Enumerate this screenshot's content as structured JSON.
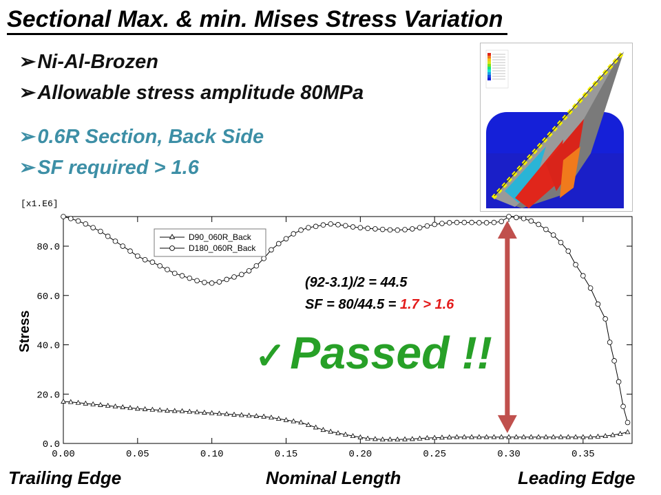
{
  "title": "Sectional Max. & min. Mises Stress Variation",
  "bullets": [
    {
      "arrow": "➢",
      "text": "Ni-Al-Brozen"
    },
    {
      "arrow": "➢",
      "text": "Allowable stress amplitude 80MPa"
    },
    {
      "arrow": "➢",
      "text": "0.6R Section, Back Side"
    },
    {
      "arrow": "➢",
      "text": "SF required > 1.6"
    }
  ],
  "annotation": {
    "line1": "(92-3.1)/2 = 44.5",
    "line2_prefix": "SF = 80/44.5 = ",
    "line2_result": "1.7 > 1.6"
  },
  "passed": {
    "check": "✓",
    "text": "Passed !!"
  },
  "footer": {
    "left": "Trailing Edge",
    "center": "Nominal Length",
    "right": "Leading Edge"
  },
  "colors": {
    "teal": "#3d8fa6",
    "green": "#27a027",
    "red_text": "#e31b1b",
    "arrow": "#c0504d"
  },
  "chart_data": {
    "type": "line",
    "scale_label": "[x1.E6]",
    "ylabel": "Stress",
    "xlabel": "",
    "xlim": [
      0.0,
      0.383
    ],
    "ylim": [
      0.0,
      92.0
    ],
    "xticks": [
      "0.00",
      "0.05",
      "0.10",
      "0.15",
      "0.20",
      "0.25",
      "0.30",
      "0.35"
    ],
    "yticks": [
      "0.0",
      "20.0",
      "40.0",
      "60.0",
      "80.0"
    ],
    "legend_position": "top-left",
    "arrow_range": {
      "x": 0.299,
      "y_low": 3.1,
      "y_high": 92.0
    },
    "series": [
      {
        "name": "D90_060R_Back",
        "marker": "triangle",
        "x": [
          0.0,
          0.005,
          0.01,
          0.015,
          0.02,
          0.025,
          0.03,
          0.035,
          0.04,
          0.045,
          0.05,
          0.055,
          0.06,
          0.065,
          0.07,
          0.075,
          0.08,
          0.085,
          0.09,
          0.095,
          0.1,
          0.105,
          0.11,
          0.115,
          0.12,
          0.125,
          0.13,
          0.135,
          0.14,
          0.145,
          0.15,
          0.155,
          0.16,
          0.165,
          0.17,
          0.175,
          0.18,
          0.185,
          0.19,
          0.195,
          0.2,
          0.205,
          0.21,
          0.215,
          0.22,
          0.225,
          0.23,
          0.235,
          0.24,
          0.245,
          0.25,
          0.255,
          0.26,
          0.265,
          0.27,
          0.275,
          0.28,
          0.285,
          0.29,
          0.295,
          0.3,
          0.305,
          0.31,
          0.315,
          0.32,
          0.325,
          0.33,
          0.335,
          0.34,
          0.345,
          0.35,
          0.355,
          0.36,
          0.365,
          0.37,
          0.375,
          0.38
        ],
        "values": [
          17.0,
          16.8,
          16.5,
          16.2,
          15.9,
          15.6,
          15.3,
          15.0,
          14.7,
          14.4,
          14.1,
          13.9,
          13.7,
          13.5,
          13.3,
          13.2,
          13.1,
          12.9,
          12.7,
          12.5,
          12.3,
          12.1,
          11.9,
          11.7,
          11.5,
          11.3,
          11.1,
          10.9,
          10.5,
          10.0,
          9.5,
          9.0,
          8.5,
          7.5,
          6.5,
          5.5,
          4.8,
          4.2,
          3.6,
          3.0,
          2.5,
          2.0,
          1.8,
          1.6,
          1.6,
          1.6,
          1.7,
          1.8,
          2.0,
          2.2,
          2.3,
          2.4,
          2.5,
          2.6,
          2.6,
          2.6,
          2.6,
          2.6,
          2.6,
          2.6,
          2.6,
          2.6,
          2.6,
          2.6,
          2.6,
          2.6,
          2.6,
          2.6,
          2.6,
          2.6,
          2.6,
          2.6,
          2.8,
          3.0,
          3.4,
          3.9,
          4.6
        ]
      },
      {
        "name": "D180_060R_Back",
        "marker": "circle",
        "x": [
          0.0,
          0.005,
          0.01,
          0.015,
          0.02,
          0.025,
          0.03,
          0.035,
          0.04,
          0.045,
          0.05,
          0.055,
          0.06,
          0.065,
          0.07,
          0.075,
          0.08,
          0.085,
          0.09,
          0.095,
          0.1,
          0.105,
          0.11,
          0.115,
          0.12,
          0.125,
          0.13,
          0.135,
          0.14,
          0.145,
          0.15,
          0.155,
          0.16,
          0.165,
          0.17,
          0.175,
          0.18,
          0.185,
          0.19,
          0.195,
          0.2,
          0.205,
          0.21,
          0.215,
          0.22,
          0.225,
          0.23,
          0.235,
          0.24,
          0.245,
          0.25,
          0.255,
          0.26,
          0.265,
          0.27,
          0.275,
          0.28,
          0.285,
          0.29,
          0.295,
          0.3,
          0.305,
          0.31,
          0.315,
          0.32,
          0.325,
          0.33,
          0.335,
          0.34,
          0.345,
          0.35,
          0.355,
          0.36,
          0.365,
          0.368,
          0.371,
          0.374,
          0.377,
          0.38
        ],
        "values": [
          92.0,
          91.2,
          90.2,
          89.0,
          87.5,
          86.0,
          84.0,
          82.0,
          80.0,
          78.0,
          76.0,
          74.5,
          73.5,
          72.0,
          70.5,
          69.0,
          68.0,
          67.0,
          66.0,
          65.3,
          65.0,
          65.5,
          66.5,
          67.5,
          68.5,
          70.0,
          72.0,
          75.0,
          78.5,
          81.0,
          83.0,
          85.0,
          86.5,
          87.5,
          88.0,
          88.6,
          89.0,
          88.7,
          88.3,
          87.8,
          87.5,
          87.2,
          87.0,
          86.8,
          86.6,
          86.5,
          86.7,
          87.0,
          87.5,
          88.2,
          88.8,
          89.2,
          89.5,
          89.6,
          89.6,
          89.6,
          89.5,
          89.5,
          89.6,
          90.0,
          92.0,
          91.6,
          91.2,
          90.2,
          88.8,
          86.8,
          84.5,
          81.5,
          78.0,
          72.5,
          68.0,
          63.0,
          56.5,
          50.5,
          41.0,
          33.5,
          25.0,
          15.0,
          8.5
        ]
      }
    ]
  }
}
